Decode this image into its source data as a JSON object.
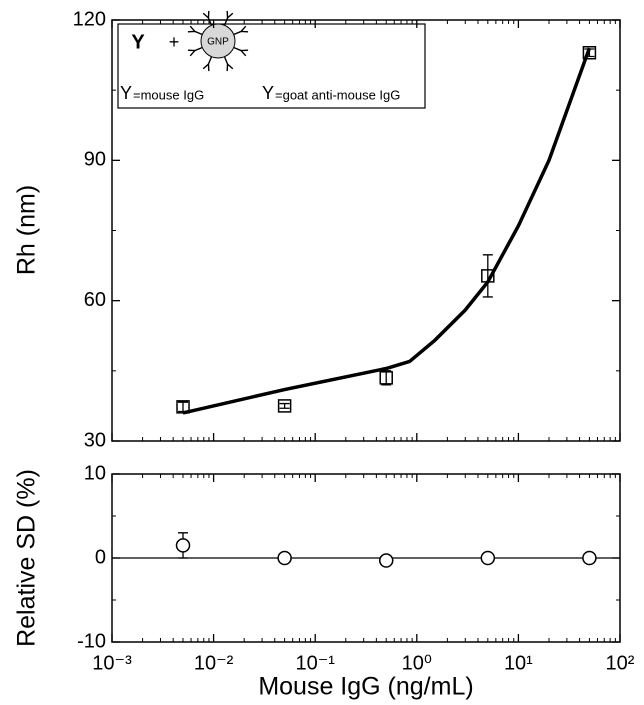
{
  "chart_data": [
    {
      "type": "scatter",
      "ylabel": "Rh (nm)",
      "marker": "square",
      "color": "#000000",
      "log_x": true,
      "x": [
        0.005,
        0.05,
        0.5,
        5,
        50
      ],
      "values": [
        37.3,
        37.5,
        43.5,
        65.3,
        113
      ],
      "errors": [
        1,
        0.5,
        1.5,
        4.5,
        0.8
      ],
      "fit": {
        "x": [
          0.005,
          0.05,
          0.5,
          0.85,
          1.5,
          3,
          5,
          10,
          20,
          50
        ],
        "values": [
          36,
          41,
          45.5,
          47,
          51.5,
          58,
          64,
          76,
          90,
          114
        ]
      },
      "xlim": [
        0.001,
        100
      ],
      "xticks": [
        0.001,
        0.01,
        0.1,
        1,
        10,
        100
      ],
      "ylim": [
        30,
        120
      ],
      "yticks": [
        30,
        60,
        90,
        120
      ],
      "annotations": {
        "reaction": [
          "Y",
          "+",
          "GNP"
        ],
        "legend_items": [
          {
            "symbol": "Y",
            "label": "=mouse IgG"
          },
          {
            "symbol": "Y",
            "label": "=goat anti-mouse IgG"
          }
        ]
      }
    },
    {
      "type": "scatter",
      "ylabel": "Relative SD (%)",
      "xlabel": "Mouse IgG (ng/mL)",
      "marker": "circle",
      "color": "#000000",
      "log_x": true,
      "x": [
        0.005,
        0.05,
        0.5,
        5,
        50
      ],
      "values": [
        1.5,
        0,
        -0.3,
        0,
        0
      ],
      "errors": [
        1.5,
        0.3,
        0.3,
        0.3,
        0.3
      ],
      "hline": 0,
      "xlim": [
        0.001,
        100
      ],
      "xticks": [
        {
          "value": 0.001,
          "label": "10⁻³"
        },
        {
          "value": 0.01,
          "label": "10⁻²"
        },
        {
          "value": 0.1,
          "label": "10⁻¹"
        },
        {
          "value": 1,
          "label": "10⁰"
        },
        {
          "value": 10,
          "label": "10¹"
        },
        {
          "value": 100,
          "label": "10²"
        }
      ],
      "ylim": [
        -10,
        10
      ],
      "yticks": [
        -10,
        0,
        10
      ]
    }
  ]
}
